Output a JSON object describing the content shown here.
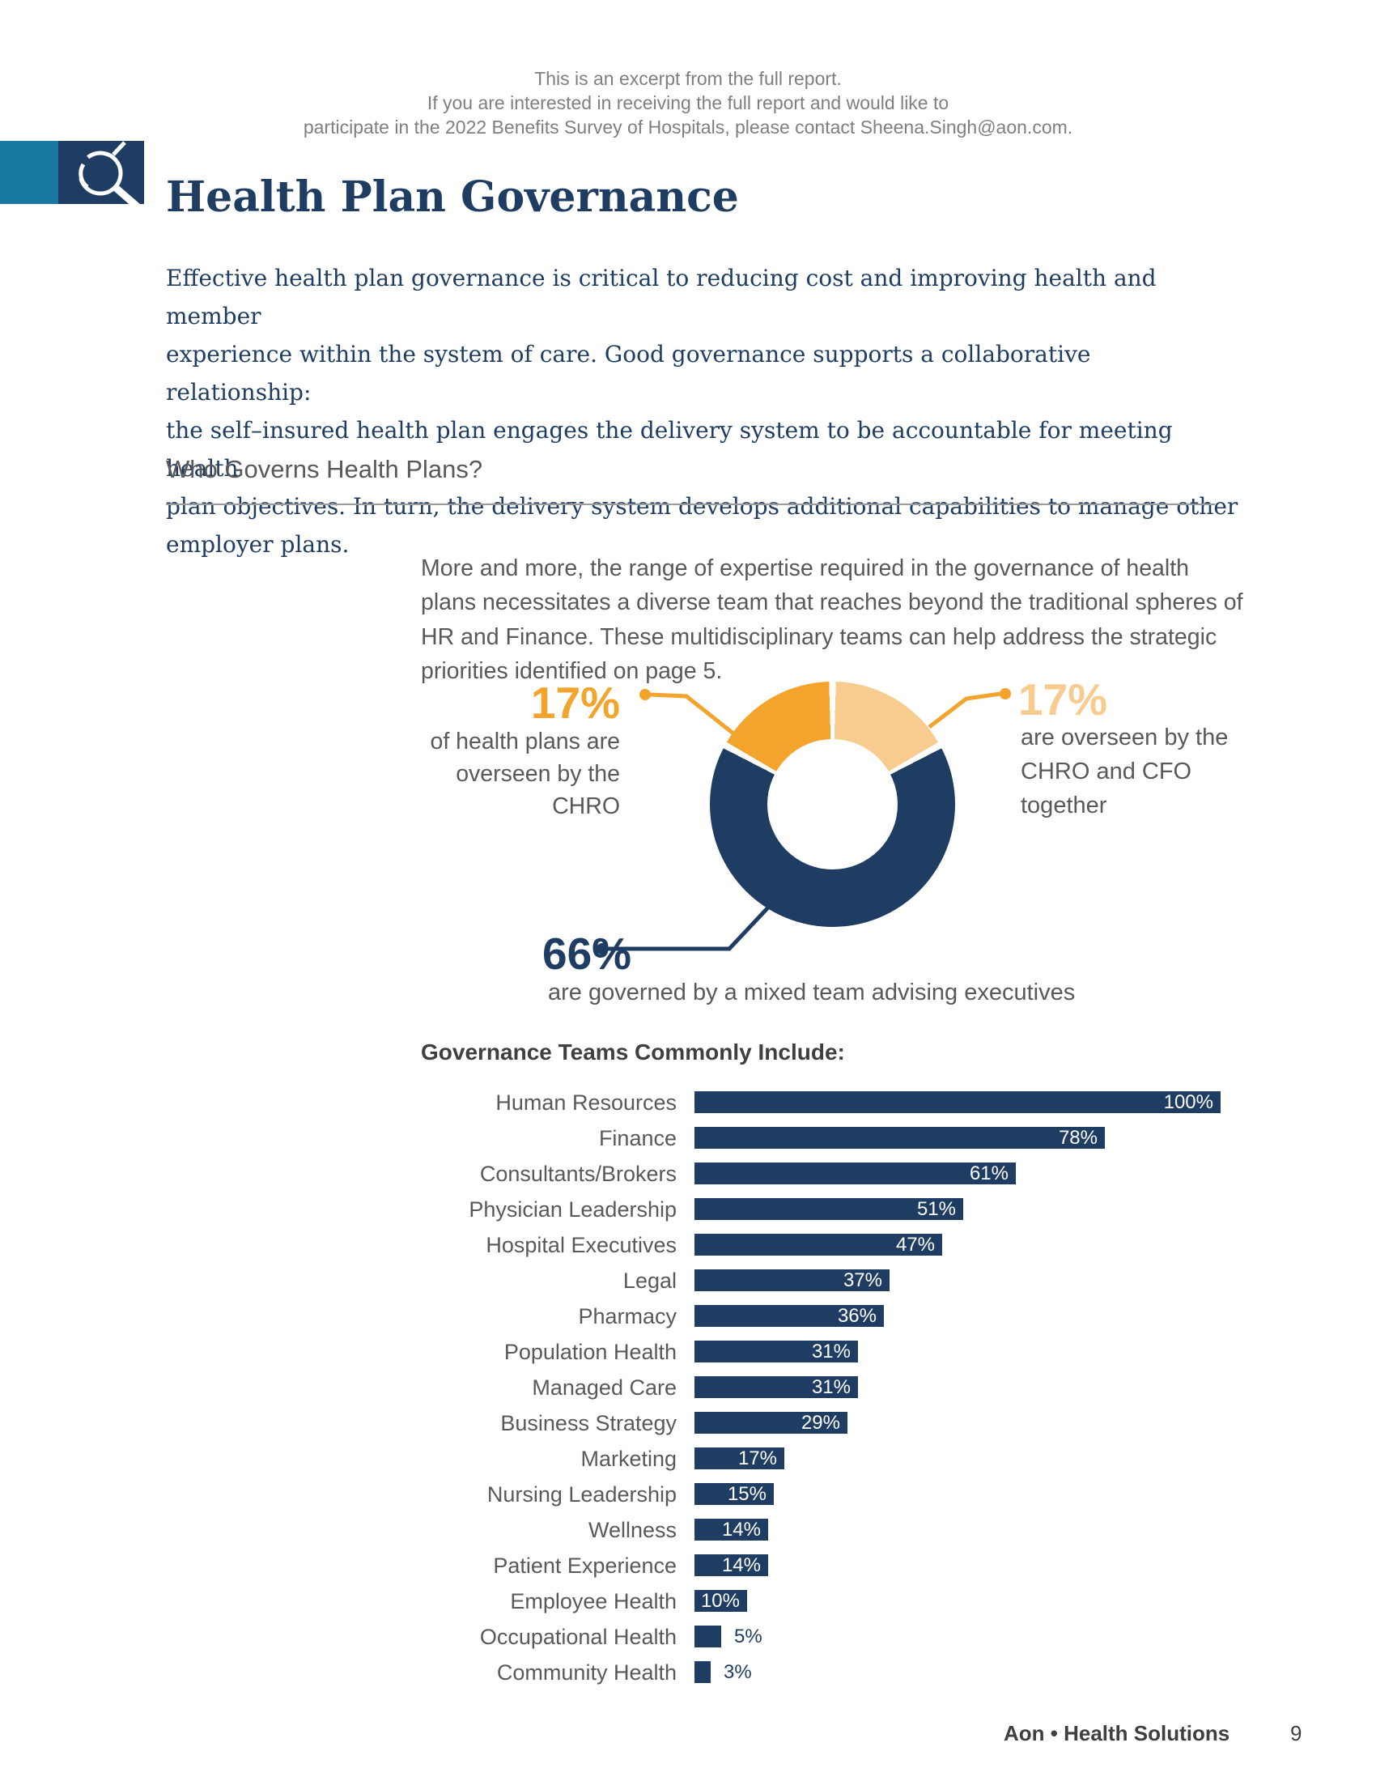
{
  "colors": {
    "navy": "#1f3d63",
    "orange": "#f2a42c",
    "light_orange": "#f8cc8e",
    "teal": "#1a79a3",
    "text_gray": "#595959",
    "notice_gray": "#7f7f7f",
    "heading_gray": "#3f3f3f",
    "rule_gray": "#9b9b9b"
  },
  "notice": {
    "lines": [
      "This is an excerpt from the full report.",
      "If you are interested in receiving the full report and would like to",
      "participate in the 2022 Benefits Survey of Hospitals, please contact Sheena.Singh@aon.com."
    ]
  },
  "header": {
    "title": "Health Plan Governance"
  },
  "intro": {
    "paragraph": "Effective health plan governance is critical to reducing cost and improving health and member\nexperience within the system of care. Good governance supports a collaborative relationship:\nthe self–insured health plan engages the delivery system to be accountable for meeting health\nplan objectives. In turn, the delivery system develops additional capabilities to manage other\nemployer plans."
  },
  "section": {
    "heading": "Who Governs Health Plans?",
    "intro": "More and more, the range of expertise required in the governance of health\nplans necessitates a diverse team that reaches beyond the traditional spheres of\nHR and Finance. These multidisciplinary teams can help address the strategic\npriorities identified on page 5."
  },
  "donut": {
    "left_label": {
      "value": "17%",
      "caption": "of health plans are\noverseen by the\nCHRO"
    },
    "right_label": {
      "value": "17%",
      "caption": "are overseen by the\nCHRO and CFO\ntogether"
    },
    "bottom_label": {
      "value": "66%",
      "caption": "are governed by a mixed team advising executives"
    }
  },
  "bar_section": {
    "heading": "Governance Teams Commonly Include:"
  },
  "chart_data": [
    {
      "type": "pie",
      "subtype": "donut",
      "title": "Who governs health plans",
      "start_angle_deg": 0,
      "clockwise": true,
      "inner_radius_ratio": 0.53,
      "slices": [
        {
          "label": "are overseen by the CHRO and CFO together",
          "value": 17,
          "color": "#f8cc8e"
        },
        {
          "label": "are governed by a mixed team advising executives",
          "value": 66,
          "color": "#1f3d63"
        },
        {
          "label": "of health plans are overseen by the CHRO",
          "value": 17,
          "color": "#f2a42c"
        }
      ]
    },
    {
      "type": "bar",
      "orientation": "horizontal",
      "title": "Governance Teams Commonly Include:",
      "xlim": [
        0,
        100
      ],
      "bar_color": "#1f3d63",
      "value_label_inside_color": "#ffffff",
      "categories": [
        "Human Resources",
        "Finance",
        "Consultants/Brokers",
        "Physician Leadership",
        "Hospital Executives",
        "Legal",
        "Pharmacy",
        "Population Health",
        "Managed Care",
        "Business Strategy",
        "Marketing",
        "Nursing Leadership",
        "Wellness",
        "Patient Experience",
        "Employee Health",
        "Occupational Health",
        "Community Health"
      ],
      "values": [
        100,
        78,
        61,
        51,
        47,
        37,
        36,
        31,
        31,
        29,
        17,
        15,
        14,
        14,
        10,
        5,
        3
      ]
    }
  ],
  "footer": {
    "brand": "Aon • Health Solutions",
    "page_number": "9"
  }
}
